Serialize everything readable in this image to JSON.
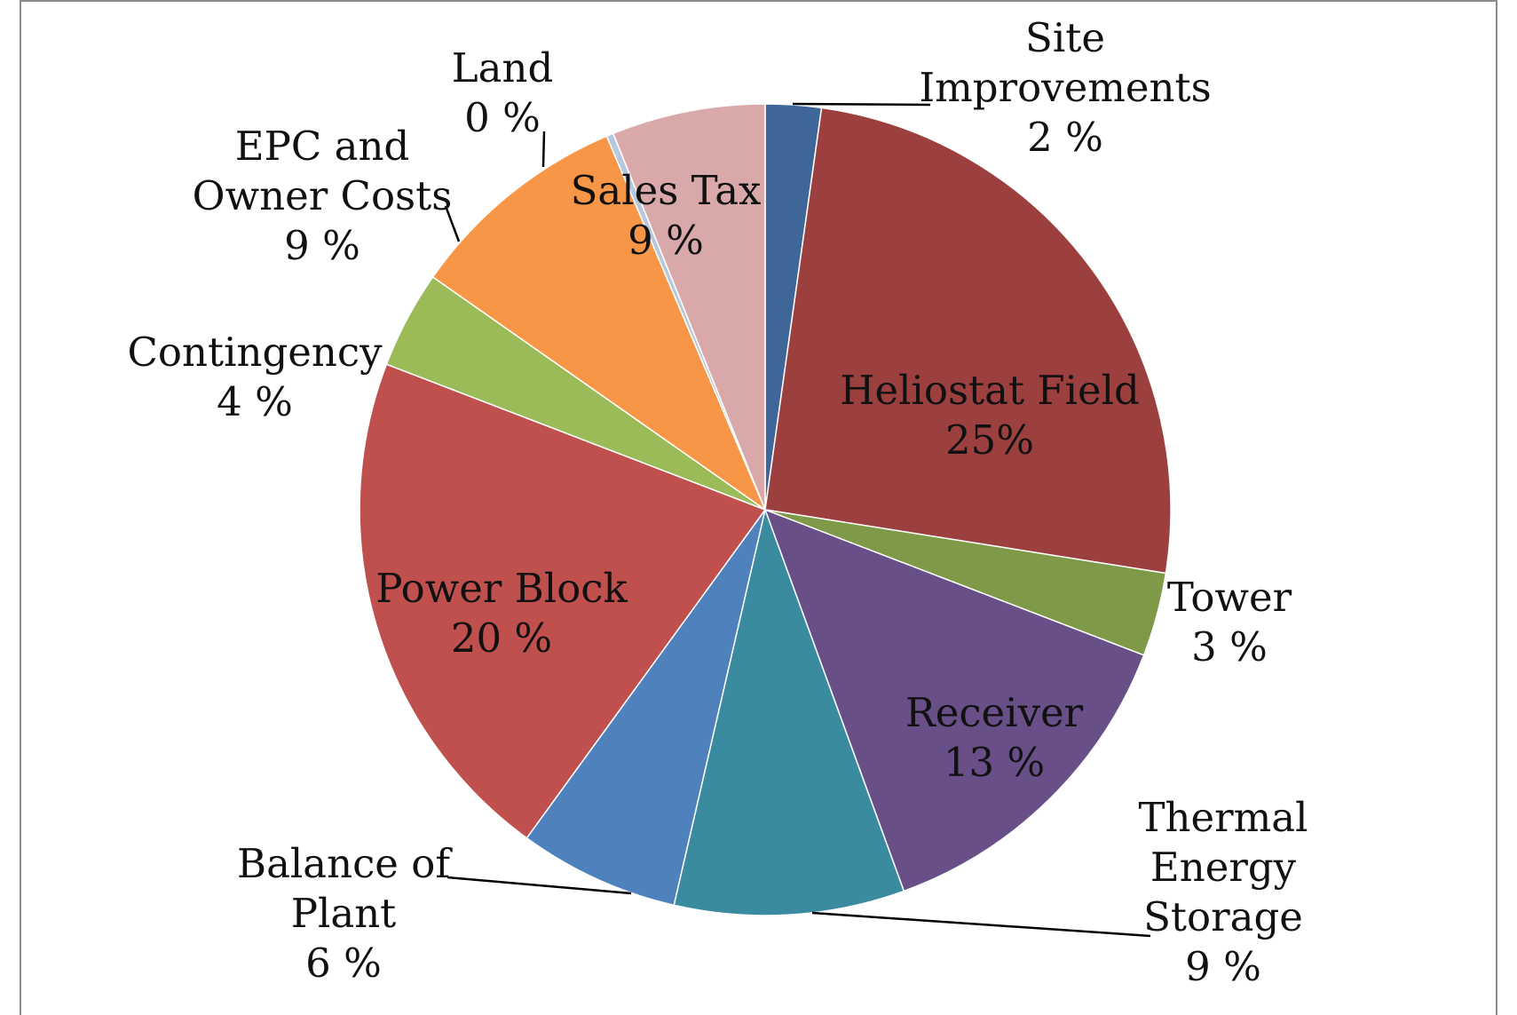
{
  "chart_data": {
    "type": "pie",
    "title": "",
    "slices": [
      {
        "name": "Site Improvements",
        "value": 2,
        "label_lines": [
          "Site",
          "Improvements",
          "2 %"
        ],
        "color": "#3E6699"
      },
      {
        "name": "Heliostat Field",
        "value": 25,
        "label_lines": [
          "Heliostat Field",
          "25%"
        ],
        "color": "#9C403F"
      },
      {
        "name": "Tower",
        "value": 3,
        "label_lines": [
          "Tower",
          "3 %"
        ],
        "color": "#7E9A48"
      },
      {
        "name": "Receiver",
        "value": 13,
        "label_lines": [
          "Receiver",
          "13 %"
        ],
        "color": "#684F88"
      },
      {
        "name": "Thermal Energy Storage",
        "value": 9,
        "label_lines": [
          "Thermal",
          "Energy",
          "Storage",
          "9 %"
        ],
        "color": "#3B8BA0"
      },
      {
        "name": "Balance of Plant",
        "value": 6,
        "label_lines": [
          "Balance of",
          "Plant",
          "6 %"
        ],
        "color": "#4F81BD"
      },
      {
        "name": "Power Block",
        "value": 20,
        "label_lines": [
          "Power Block",
          "20 %"
        ],
        "color": "#C0504D"
      },
      {
        "name": "Contingency",
        "value": 4,
        "label_lines": [
          "Contingency",
          "4 %"
        ],
        "color": "#9BBB59"
      },
      {
        "name": "EPC and Owner Costs",
        "value": 9,
        "label_lines": [
          "EPC and",
          "Owner Costs",
          "9 %"
        ],
        "color": "#F79646"
      },
      {
        "name": "Land",
        "value": 0,
        "label_lines": [
          "Land",
          "0 %"
        ],
        "color": "#B7C7DD"
      },
      {
        "name": "Sales Tax",
        "value": 9,
        "label_lines": [
          "Sales Tax",
          "9 %"
        ],
        "color": "#D9A9AA"
      }
    ]
  }
}
